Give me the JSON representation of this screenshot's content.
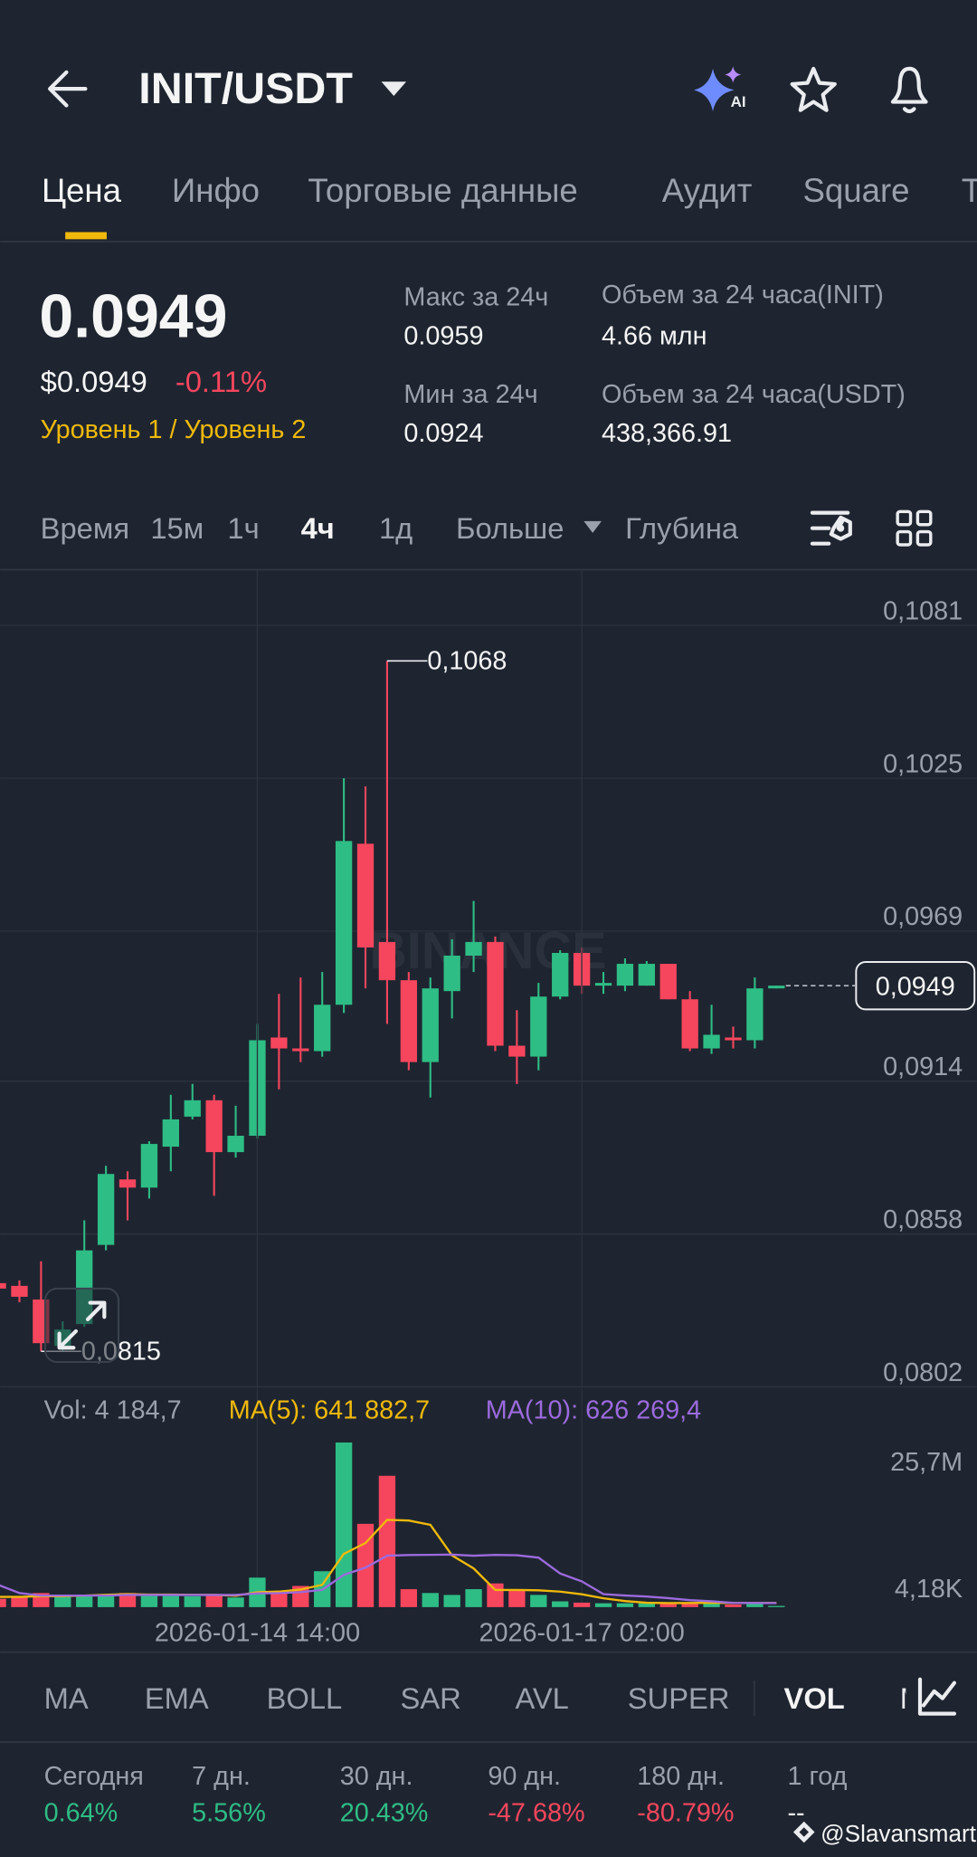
{
  "header": {
    "pair": "INIT/USDT"
  },
  "tabs": [
    "Цена",
    "Инфо",
    "Торговые данные",
    "Аудит",
    "Square",
    "Т"
  ],
  "price": {
    "last": "0.0949",
    "usd": "$0.0949",
    "change": "-0.11%",
    "levels": "Уровень 1 / Уровень 2"
  },
  "stats": [
    {
      "label": "Макс за 24ч",
      "value": "0.0959"
    },
    {
      "label": "Мин за 24ч",
      "value": "0.0924"
    },
    {
      "label": "Объем за 24 часа(INIT)",
      "value": "4.66 млн"
    },
    {
      "label": "Объем за 24 часа(USDT)",
      "value": "438,366.91"
    }
  ],
  "intervals": [
    "Время",
    "15м",
    "1ч",
    "4ч",
    "1д",
    "Больше",
    "Глубина"
  ],
  "chart_data": [
    {
      "type": "candlestick",
      "watermark": "BINANCE",
      "categories": [
        null,
        null,
        null,
        null,
        null,
        null,
        null,
        null,
        null,
        null,
        null,
        null,
        null,
        null,
        null,
        null,
        null,
        null,
        null,
        null,
        null,
        null,
        null,
        null,
        null,
        null,
        null,
        null,
        null,
        null,
        null,
        null,
        null,
        null,
        null,
        null,
        null
      ],
      "open": [
        0.084,
        0.0839,
        0.0834,
        0.0817,
        0.0825,
        0.0854,
        0.0878,
        0.0875,
        0.089,
        0.0901,
        0.0907,
        0.0888,
        0.0894,
        0.093,
        0.0926,
        0.0925,
        0.0942,
        0.1001,
        0.0965,
        0.0951,
        0.0921,
        0.0947,
        0.096,
        0.0965,
        0.0927,
        0.0923,
        0.0945,
        0.0961,
        0.0949,
        0.0949,
        0.0949,
        0.0957,
        0.0944,
        0.0926,
        0.093,
        0.0929,
        0.0948
      ],
      "high": [
        0.0841,
        0.0841,
        0.0848,
        0.0826,
        0.0863,
        0.0883,
        0.0881,
        0.0892,
        0.0909,
        0.0913,
        0.0909,
        0.0905,
        0.0935,
        0.0946,
        0.0952,
        0.0954,
        0.1025,
        0.1022,
        0.1068,
        0.0954,
        0.0952,
        0.0966,
        0.098,
        0.0967,
        0.094,
        0.095,
        0.0962,
        0.0963,
        0.0954,
        0.0959,
        0.0958,
        0.0957,
        0.0947,
        0.0942,
        0.0934,
        0.0952,
        0.0949
      ],
      "low": [
        0.0837,
        0.0833,
        0.0815,
        0.0815,
        0.0824,
        0.0852,
        0.0863,
        0.0871,
        0.0881,
        0.09,
        0.0872,
        0.0886,
        0.0893,
        0.0911,
        0.0921,
        0.0923,
        0.0939,
        0.0948,
        0.0935,
        0.0918,
        0.0908,
        0.0937,
        0.0954,
        0.0925,
        0.0913,
        0.0918,
        0.0944,
        0.0946,
        0.0946,
        0.0947,
        0.0949,
        0.0944,
        0.0925,
        0.0924,
        0.0926,
        0.0926,
        0.0948
      ],
      "close": [
        0.0838,
        0.0835,
        0.0818,
        0.0823,
        0.0852,
        0.088,
        0.0875,
        0.0891,
        0.09,
        0.0907,
        0.0888,
        0.0894,
        0.0929,
        0.0926,
        0.0925,
        0.0942,
        0.1002,
        0.0963,
        0.0951,
        0.0921,
        0.0948,
        0.096,
        0.0965,
        0.0927,
        0.0923,
        0.0945,
        0.0961,
        0.0949,
        0.095,
        0.0957,
        0.0957,
        0.0944,
        0.0926,
        0.0931,
        0.0929,
        0.0948,
        0.0949
      ],
      "up_color": "#2ebd85",
      "down_color": "#f6465d",
      "ylim": [
        0.0802,
        0.1101
      ],
      "yticks": [
        {
          "value": 0.1081,
          "label": "0,1081"
        },
        {
          "value": 0.1025,
          "label": "0,1025"
        },
        {
          "value": 0.0969,
          "label": "0,0969"
        },
        {
          "value": 0.0914,
          "label": "0,0914"
        },
        {
          "value": 0.0858,
          "label": "0,0858"
        },
        {
          "value": 0.0802,
          "label": "0,0802"
        }
      ],
      "annotations": [
        {
          "x": 18,
          "value": 0.1068,
          "label": "0,1068"
        },
        {
          "x": 2,
          "value": 0.0815,
          "label": "0,0815"
        }
      ],
      "last_price": {
        "value": 0.0949,
        "label": "0,0949"
      },
      "grid": true
    },
    {
      "type": "volume",
      "series": [
        {
          "name": "Vol: 4 184,7",
          "type": "bar",
          "values": [
            1300000,
            1700000,
            2200000,
            1900000,
            1900000,
            1900000,
            2200000,
            1900000,
            1900000,
            1700000,
            1900000,
            1500000,
            4600000,
            2400000,
            3300000,
            5600000,
            25700000,
            13000000,
            20500000,
            2800000,
            2200000,
            1900000,
            2800000,
            3700000,
            2800000,
            1900000,
            900000,
            700000,
            600000,
            600000,
            600000,
            600000,
            700000,
            900000,
            400000,
            600000,
            4184.7
          ]
        },
        {
          "name": "MA(5): 641 882,7",
          "type": "line",
          "color": "#f0b90b",
          "values": [
            1600000,
            1600000,
            1700000,
            1700000,
            1800000,
            1920000,
            2020000,
            1960000,
            1960000,
            1920000,
            1920000,
            1780000,
            2320000,
            2420000,
            2740000,
            3480000,
            8320000,
            10000000,
            13620000,
            13520000,
            12840000,
            8080000,
            6040000,
            2680000,
            2680000,
            2620000,
            2420000,
            2000000,
            1380000,
            940000,
            680000,
            620000,
            640000,
            680000,
            640000,
            640000,
            641882.7
          ]
        },
        {
          "name": "MA(10): 626 269,4",
          "type": "line",
          "color": "#9c6ade",
          "values": [
            3500000,
            2200000,
            1800000,
            1800000,
            1800000,
            1800000,
            1900000,
            1900000,
            1900000,
            1900000,
            1900000,
            1900000,
            2140000,
            2190000,
            2330000,
            2700000,
            5050000,
            6160000,
            8020000,
            8130000,
            8160000,
            8200000,
            8020000,
            8150000,
            8100000,
            7730000,
            5250000,
            4020000,
            2030000,
            1810000,
            1650000,
            1400000,
            1090000,
            910000,
            660000,
            640000,
            626269.4
          ]
        }
      ],
      "ylim": [
        0,
        25700000
      ],
      "yticks": [
        {
          "value": 25700000,
          "label": "25,7M"
        },
        {
          "value": 4180,
          "label": "4,18K"
        }
      ],
      "xticks": [
        {
          "value": 12,
          "label": "2026-01-14 14:00"
        },
        {
          "value": 27,
          "label": "2026-01-17 02:00"
        }
      ]
    }
  ],
  "indicators": [
    "MA",
    "EMA",
    "BOLL",
    "SAR",
    "AVL",
    "SUPER",
    "VOL",
    "M"
  ],
  "performance": [
    {
      "label": "Сегодня",
      "value": "0.64%"
    },
    {
      "label": "7 дн.",
      "value": "5.56%"
    },
    {
      "label": "30 дн.",
      "value": "20.43%"
    },
    {
      "label": "90 дн.",
      "value": "-47.68%"
    },
    {
      "label": "180 дн.",
      "value": "-80.79%"
    },
    {
      "label": "1 год",
      "value": "--"
    }
  ],
  "watermark": "@Slavansmart"
}
